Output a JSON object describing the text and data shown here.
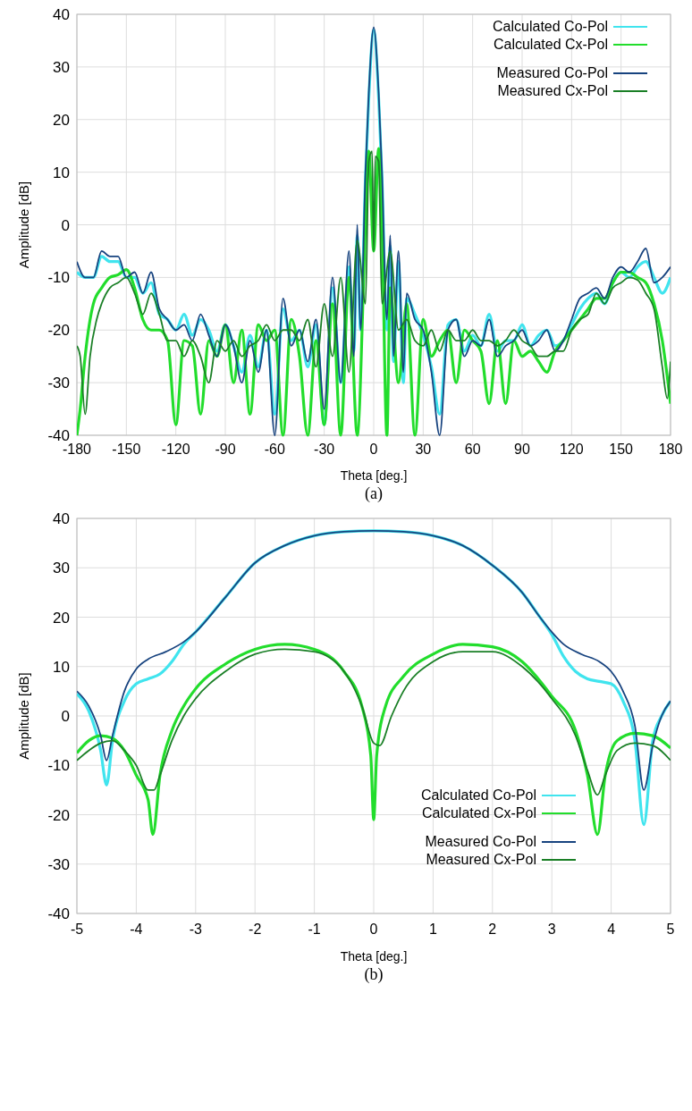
{
  "chart_data": [
    {
      "type": "line",
      "xlabel": "Theta [deg.]",
      "ylabel": "Amplitude [dB]",
      "annotations": [
        "(a)"
      ],
      "xlim": [
        -180,
        180
      ],
      "xticks": [
        -180,
        -150,
        -120,
        -90,
        -60,
        -30,
        0,
        30,
        60,
        90,
        120,
        150,
        180
      ],
      "ylim": [
        -40,
        40
      ],
      "yticks": [
        -40,
        -30,
        -20,
        -10,
        0,
        10,
        20,
        30,
        40
      ],
      "grid": true,
      "legend": "top right",
      "line_style": "solid",
      "series": [
        {
          "name": "Calculated Co-Pol",
          "color": "#40e4ee",
          "x": [
            -180,
            -175,
            -170,
            -165,
            -160,
            -155,
            -150,
            -145,
            -140,
            -135,
            -130,
            -125,
            -120,
            -115,
            -110,
            -105,
            -100,
            -95,
            -90,
            -85,
            -80,
            -75,
            -70,
            -65,
            -60,
            -55,
            -50,
            -45,
            -40,
            -35,
            -30,
            -25,
            -20,
            -15,
            -12,
            -10,
            -8,
            -5,
            -3,
            0,
            3,
            5,
            8,
            10,
            12,
            15,
            18,
            20,
            25,
            30,
            35,
            40,
            45,
            50,
            55,
            60,
            65,
            70,
            75,
            80,
            85,
            90,
            95,
            100,
            105,
            110,
            115,
            120,
            125,
            130,
            135,
            140,
            145,
            150,
            155,
            160,
            165,
            170,
            175,
            180
          ],
          "values": [
            -9,
            -10,
            -10,
            -6,
            -7,
            -7,
            -10,
            -10,
            -13,
            -11,
            -17,
            -18,
            -20,
            -17,
            -21,
            -18,
            -20,
            -24,
            -19,
            -23,
            -28,
            -21,
            -27,
            -20,
            -36,
            -16,
            -22,
            -20,
            -27,
            -19,
            -38,
            -12,
            -30,
            -8,
            -24,
            -2,
            -20,
            9,
            24,
            37,
            24,
            9,
            -20,
            -4,
            -26,
            -7,
            -30,
            -14,
            -17,
            -21,
            -27,
            -36,
            -19,
            -18,
            -24,
            -21,
            -23,
            -17,
            -24,
            -22,
            -22,
            -19,
            -23,
            -21,
            -20,
            -23,
            -22,
            -19,
            -16,
            -14,
            -13,
            -15,
            -11,
            -9,
            -10,
            -8,
            -7,
            -10,
            -13,
            -10
          ]
        },
        {
          "name": "Calculated Cx-Pol",
          "color": "#22dd2c",
          "x": [
            -180,
            -178,
            -175,
            -170,
            -165,
            -160,
            -155,
            -150,
            -145,
            -140,
            -135,
            -130,
            -125,
            -120,
            -115,
            -110,
            -105,
            -100,
            -95,
            -90,
            -85,
            -80,
            -75,
            -70,
            -65,
            -60,
            -55,
            -50,
            -45,
            -40,
            -35,
            -30,
            -25,
            -20,
            -15,
            -10,
            -5,
            -3,
            0,
            3,
            5,
            8,
            10,
            15,
            20,
            25,
            30,
            35,
            40,
            45,
            50,
            55,
            60,
            65,
            70,
            75,
            80,
            85,
            90,
            95,
            100,
            105,
            110,
            115,
            120,
            125,
            130,
            135,
            140,
            145,
            150,
            155,
            160,
            165,
            170,
            175,
            180
          ],
          "values": [
            -40,
            -35,
            -25,
            -15,
            -12,
            -10,
            -9.5,
            -8.5,
            -12,
            -18,
            -20,
            -20,
            -22,
            -38,
            -22,
            -23,
            -36,
            -22,
            -25,
            -19,
            -30,
            -20,
            -36,
            -19,
            -22,
            -20,
            -40,
            -18,
            -25,
            -40,
            -22,
            -38,
            -15,
            -40,
            -10,
            -40,
            0,
            14,
            -5,
            14.5,
            0,
            -40,
            -12,
            -30,
            -15,
            -40,
            -18,
            -25,
            -22,
            -20,
            -30,
            -20,
            -22,
            -24,
            -34,
            -22,
            -34,
            -22,
            -25,
            -24,
            -26,
            -28,
            -24,
            -22,
            -20,
            -18,
            -16,
            -14,
            -14,
            -11,
            -9,
            -9,
            -10,
            -11,
            -15,
            -22,
            -34
          ]
        },
        {
          "name": "Measured Co-Pol",
          "color": "#17437f",
          "x": [
            -180,
            -175,
            -170,
            -165,
            -160,
            -155,
            -150,
            -145,
            -140,
            -135,
            -130,
            -125,
            -120,
            -115,
            -110,
            -105,
            -100,
            -95,
            -90,
            -85,
            -80,
            -75,
            -70,
            -65,
            -60,
            -55,
            -50,
            -45,
            -40,
            -35,
            -30,
            -25,
            -20,
            -15,
            -12,
            -10,
            -8,
            -5,
            -3,
            0,
            3,
            5,
            8,
            10,
            12,
            15,
            18,
            20,
            25,
            30,
            35,
            40,
            45,
            50,
            55,
            60,
            65,
            70,
            75,
            80,
            85,
            90,
            95,
            100,
            105,
            110,
            115,
            120,
            125,
            130,
            135,
            140,
            145,
            150,
            155,
            160,
            165,
            170,
            175,
            180
          ],
          "values": [
            -7,
            -10,
            -10,
            -5,
            -6,
            -6,
            -10,
            -9,
            -13,
            -9,
            -16,
            -18,
            -20,
            -19,
            -22,
            -17,
            -21,
            -25,
            -19,
            -23,
            -30,
            -22,
            -28,
            -20,
            -40,
            -14,
            -23,
            -20,
            -26,
            -18,
            -35,
            -10,
            -30,
            -5,
            -25,
            0,
            -20,
            10,
            25,
            37.5,
            25,
            10,
            -18,
            -2,
            -25,
            -5,
            -28,
            -13,
            -18,
            -20,
            -28,
            -40,
            -20,
            -18,
            -25,
            -22,
            -23,
            -18,
            -25,
            -23,
            -22,
            -20,
            -23,
            -22,
            -20,
            -24,
            -22,
            -18,
            -14,
            -13,
            -12,
            -14,
            -10,
            -8,
            -9,
            -7,
            -4.5,
            -11,
            -10,
            -8
          ]
        },
        {
          "name": "Measured Cx-Pol",
          "color": "#1a7f26",
          "x": [
            -180,
            -178,
            -175,
            -172,
            -168,
            -165,
            -160,
            -155,
            -150,
            -145,
            -140,
            -135,
            -130,
            -125,
            -120,
            -115,
            -110,
            -105,
            -100,
            -95,
            -90,
            -85,
            -80,
            -75,
            -70,
            -65,
            -60,
            -55,
            -50,
            -45,
            -40,
            -35,
            -30,
            -25,
            -20,
            -15,
            -10,
            -5,
            -3,
            -1,
            0,
            1,
            3,
            5,
            10,
            15,
            20,
            25,
            30,
            35,
            40,
            45,
            50,
            55,
            60,
            65,
            70,
            75,
            80,
            85,
            90,
            95,
            100,
            105,
            110,
            115,
            120,
            125,
            130,
            135,
            140,
            145,
            150,
            155,
            160,
            165,
            170,
            175,
            178,
            180
          ],
          "values": [
            -23,
            -25,
            -36,
            -25,
            -18,
            -15,
            -12,
            -11,
            -10,
            -13,
            -17,
            -13,
            -17,
            -22,
            -22,
            -25,
            -22,
            -25,
            -30,
            -22,
            -24,
            -22,
            -25,
            -23,
            -22,
            -19,
            -22,
            -20,
            -20,
            -22,
            -18,
            -27,
            -15,
            -25,
            -10,
            -28,
            -3,
            -15,
            12,
            14,
            -5,
            13,
            12,
            -15,
            -5,
            -20,
            -18,
            -22,
            -23,
            -20,
            -24,
            -20,
            -22,
            -22,
            -20,
            -22,
            -22,
            -23,
            -22,
            -20,
            -22,
            -23,
            -25,
            -25,
            -24,
            -24,
            -20,
            -18,
            -17,
            -13,
            -15,
            -12,
            -11,
            -10,
            -10.5,
            -13,
            -16,
            -27,
            -33,
            -26
          ]
        }
      ]
    },
    {
      "type": "line",
      "xlabel": "Theta [deg.]",
      "ylabel": "Amplitude [dB]",
      "annotations": [
        "(b)"
      ],
      "xlim": [
        -5,
        5
      ],
      "xticks": [
        -5,
        -4,
        -3,
        -2,
        -1,
        0,
        1,
        2,
        3,
        4,
        5
      ],
      "ylim": [
        -40,
        40
      ],
      "yticks": [
        -40,
        -30,
        -20,
        -10,
        0,
        10,
        20,
        30,
        40
      ],
      "grid": true,
      "legend": "bottom right",
      "line_style": "solid",
      "series": [
        {
          "name": "Calculated Co-Pol",
          "color": "#40e4ee",
          "x": [
            -5,
            -4.8,
            -4.6,
            -4.5,
            -4.4,
            -4.2,
            -4,
            -3.8,
            -3.6,
            -3.4,
            -3.2,
            -3,
            -2.5,
            -2,
            -1.5,
            -1,
            -0.5,
            0,
            0.5,
            1,
            1.5,
            2,
            2.5,
            2.8,
            3,
            3.2,
            3.4,
            3.6,
            3.8,
            4,
            4.2,
            4.4,
            4.55,
            4.7,
            4.85,
            5
          ],
          "values": [
            4.5,
            1,
            -7,
            -14,
            -5,
            3,
            6.5,
            7.5,
            8.5,
            11,
            14.5,
            17,
            24,
            31,
            34.5,
            36.5,
            37.3,
            37.5,
            37.3,
            36.5,
            34.5,
            30.5,
            25,
            20,
            16.5,
            12,
            9,
            7.5,
            7,
            6.5,
            3,
            -5,
            -22,
            -5,
            0,
            3
          ]
        },
        {
          "name": "Calculated Cx-Pol",
          "color": "#22dd2c",
          "x": [
            -5,
            -4.8,
            -4.6,
            -4.4,
            -4.2,
            -4,
            -3.8,
            -3.72,
            -3.6,
            -3.4,
            -3.2,
            -3,
            -2.5,
            -2,
            -1.5,
            -1,
            -0.5,
            -0.2,
            -0.05,
            0,
            0.05,
            0.2,
            0.5,
            1,
            1.5,
            2,
            2.5,
            3,
            3.4,
            3.6,
            3.77,
            3.9,
            4.1,
            4.4,
            4.7,
            5
          ],
          "values": [
            -7.5,
            -5,
            -4,
            -4.5,
            -7,
            -12,
            -17,
            -24,
            -12,
            -3,
            2,
            5.5,
            10.5,
            13.5,
            14.5,
            13.5,
            9,
            2,
            -8,
            -21,
            -8,
            2,
            8,
            12.5,
            14.5,
            14,
            11,
            4,
            -3,
            -12,
            -24,
            -12,
            -5,
            -3.5,
            -4,
            -6.5
          ]
        },
        {
          "name": "Measured Co-Pol",
          "color": "#17437f",
          "x": [
            -5,
            -4.8,
            -4.6,
            -4.5,
            -4.4,
            -4.2,
            -4,
            -3.8,
            -3.5,
            -3.2,
            -3,
            -2.5,
            -2,
            -1.5,
            -1,
            -0.5,
            0,
            0.5,
            1,
            1.5,
            2,
            2.5,
            2.8,
            3,
            3.2,
            3.5,
            3.8,
            4,
            4.2,
            4.4,
            4.55,
            4.7,
            4.85,
            5
          ],
          "values": [
            5,
            2,
            -4,
            -9,
            -4,
            5,
            9.5,
            11.5,
            13,
            15,
            17,
            24,
            31,
            34.5,
            36.5,
            37.3,
            37.5,
            37.3,
            36.5,
            34.5,
            30.5,
            25,
            20,
            17,
            14.5,
            12.5,
            11,
            9,
            5,
            -2,
            -15,
            -6,
            0,
            3
          ]
        },
        {
          "name": "Measured Cx-Pol",
          "color": "#1a7f26",
          "x": [
            -5,
            -4.8,
            -4.6,
            -4.4,
            -4.2,
            -4,
            -3.8,
            -3.7,
            -3.6,
            -3.4,
            -3.2,
            -3,
            -2.5,
            -2,
            -1.5,
            -1,
            -0.5,
            -0.2,
            0,
            0.1,
            0.3,
            0.5,
            1,
            1.5,
            2,
            2.5,
            3,
            3.4,
            3.6,
            3.77,
            3.9,
            4.1,
            4.4,
            4.7,
            5
          ],
          "values": [
            -9,
            -7,
            -5.5,
            -5,
            -7,
            -10,
            -15,
            -15,
            -12,
            -5,
            0,
            3.5,
            9,
            12.5,
            13.5,
            13,
            9,
            2,
            -5.5,
            -6,
            0,
            5,
            11,
            13,
            13,
            10,
            3.5,
            -4,
            -11,
            -16,
            -12,
            -7,
            -5.5,
            -6,
            -9
          ]
        }
      ]
    }
  ]
}
